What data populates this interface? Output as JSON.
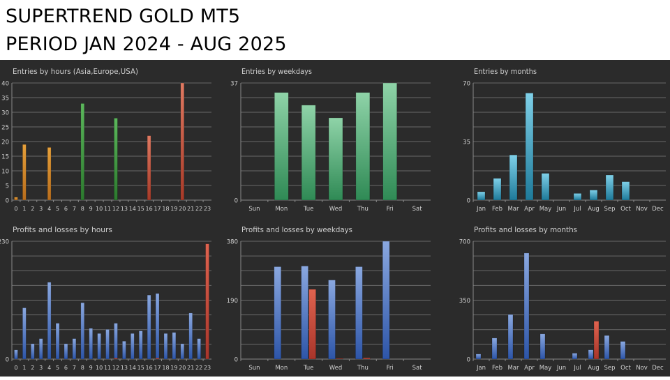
{
  "header": {
    "title_line1": "SUPERTREND GOLD MT5",
    "title_line2": "PERIOD JAN 2024 - AUG 2025"
  },
  "colors": {
    "background": "#2b2b2b",
    "grid": "#6a6a6a",
    "text": "#d0d0d0",
    "orange": "#d4892a",
    "green": "#3f9a40",
    "red": "#c6533e",
    "light_green": "#6cc490",
    "cyan": "#2f97b8",
    "blue": "#3f6fc0",
    "loss_red": "#c8473a"
  },
  "chart_data": [
    {
      "type": "bar",
      "title": "Entries by hours (Asia,Europe,USA)",
      "categories": [
        "0",
        "1",
        "2",
        "3",
        "4",
        "5",
        "6",
        "7",
        "8",
        "9",
        "10",
        "11",
        "12",
        "13",
        "14",
        "15",
        "16",
        "17",
        "18",
        "19",
        "20",
        "21",
        "22",
        "23"
      ],
      "values": [
        1,
        19,
        0,
        0,
        18,
        0,
        0,
        0,
        33,
        0,
        0,
        0,
        28,
        0,
        0,
        0,
        22,
        0,
        0,
        0,
        40,
        0,
        0,
        0
      ],
      "ylim": [
        0,
        40
      ],
      "yticks": [
        0,
        5,
        10,
        15,
        20,
        25,
        30,
        35,
        40
      ]
    },
    {
      "type": "bar",
      "title": "Entries by weekdays",
      "categories": [
        "Sun",
        "Mon",
        "Tue",
        "Wed",
        "Thu",
        "Fri",
        "Sat"
      ],
      "values": [
        0,
        34,
        30,
        26,
        34,
        37,
        0
      ],
      "ylim": [
        0,
        37
      ],
      "yticks": [
        0,
        37
      ]
    },
    {
      "type": "bar",
      "title": "Entries by months",
      "categories": [
        "Jan",
        "Feb",
        "Mar",
        "Apr",
        "May",
        "Jun",
        "Jul",
        "Aug",
        "Sep",
        "Oct",
        "Nov",
        "Dec"
      ],
      "values": [
        5,
        13,
        27,
        64,
        16,
        0,
        4,
        6,
        15,
        11,
        0,
        0
      ],
      "ylim": [
        0,
        70
      ],
      "yticks": [
        0,
        35,
        70
      ]
    },
    {
      "type": "bar",
      "title": "Profits and losses by hours",
      "categories": [
        "0",
        "1",
        "2",
        "3",
        "4",
        "5",
        "6",
        "7",
        "8",
        "9",
        "10",
        "11",
        "12",
        "13",
        "14",
        "15",
        "16",
        "17",
        "18",
        "19",
        "20",
        "21",
        "22",
        "23"
      ],
      "series": [
        {
          "values": [
            18,
            100,
            30,
            40,
            150,
            70,
            30,
            40,
            110,
            60,
            50,
            58,
            70,
            35,
            50,
            55,
            125,
            128,
            50,
            52,
            30,
            90,
            40,
            20
          ]
        },
        {
          "values": [
            0,
            0,
            0,
            0,
            0,
            0,
            0,
            0,
            0,
            0,
            0,
            0,
            2,
            0,
            0,
            0,
            0,
            2,
            0,
            0,
            0,
            0,
            0,
            225
          ]
        }
      ],
      "ylim": [
        0,
        230
      ],
      "yticks": [
        0,
        230
      ]
    },
    {
      "type": "bar",
      "title": "Profits and losses by weekdays",
      "categories": [
        "Sun",
        "Mon",
        "Tue",
        "Wed",
        "Thu",
        "Fri",
        "Sat"
      ],
      "series": [
        {
          "values": [
            0,
            298,
            300,
            255,
            298,
            380,
            0
          ]
        },
        {
          "values": [
            0,
            0,
            225,
            2,
            4,
            0,
            0
          ]
        }
      ],
      "ylim": [
        0,
        380
      ],
      "yticks": [
        0,
        190,
        380
      ]
    },
    {
      "type": "bar",
      "title": "Profits and losses by months",
      "categories": [
        "Jan",
        "Feb",
        "Mar",
        "Apr",
        "May",
        "Jun",
        "Jul",
        "Aug",
        "Sep",
        "Oct",
        "Nov",
        "Dec"
      ],
      "series": [
        {
          "values": [
            30,
            125,
            265,
            630,
            150,
            0,
            35,
            55,
            140,
            105,
            0,
            0
          ]
        },
        {
          "values": [
            0,
            0,
            0,
            0,
            0,
            0,
            0,
            225,
            0,
            0,
            0,
            0
          ]
        }
      ],
      "ylim": [
        0,
        700
      ],
      "yticks": [
        0,
        350,
        700
      ]
    }
  ]
}
